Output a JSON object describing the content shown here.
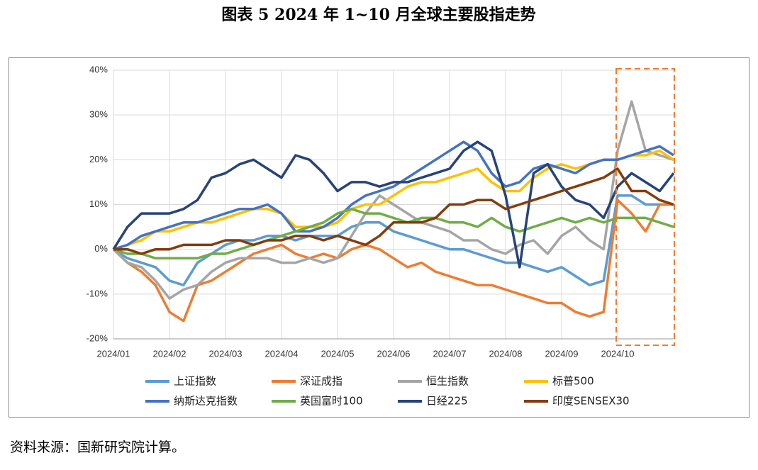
{
  "chart_data": {
    "type": "line",
    "title": "图表 5 2024 年 1~10 月全球主要股指走势",
    "source": "资料来源：国新研究院计算。",
    "x": [
      "2024/01",
      null,
      null,
      null,
      "2024/02",
      null,
      null,
      null,
      "2024/03",
      null,
      null,
      null,
      "2024/04",
      null,
      null,
      null,
      "2024/05",
      null,
      null,
      null,
      "2024/06",
      null,
      null,
      null,
      "2024/07",
      null,
      null,
      null,
      "2024/08",
      null,
      null,
      null,
      "2024/09",
      null,
      null,
      null,
      "2024/10",
      null,
      null,
      null,
      null
    ],
    "ylim": [
      -20,
      40
    ],
    "yticks": [
      {
        "value": -20,
        "label": "-20%"
      },
      {
        "value": -10,
        "label": "-10%"
      },
      {
        "value": 0,
        "label": "0%"
      },
      {
        "value": 10,
        "label": "10%"
      },
      {
        "value": 20,
        "label": "20%"
      },
      {
        "value": 30,
        "label": "30%"
      },
      {
        "value": 40,
        "label": "40%"
      }
    ],
    "grid": true,
    "legend": "bottom",
    "series": [
      {
        "name": "上证指数",
        "color": "#5b9bd5",
        "values": [
          0,
          -2,
          -3,
          -4,
          -7,
          -8,
          -3,
          -1,
          1,
          2,
          2,
          3,
          3,
          2,
          3,
          3,
          3,
          5,
          6,
          6,
          4,
          3,
          2,
          1,
          0,
          0,
          -1,
          -2,
          -3,
          -3,
          -4,
          -5,
          -4,
          -6,
          -8,
          -7,
          12,
          12,
          10,
          10,
          10
        ]
      },
      {
        "name": "深证成指",
        "color": "#ed7d31",
        "values": [
          0,
          -3,
          -5,
          -8,
          -14,
          -16,
          -8,
          -7,
          -5,
          -3,
          -1,
          0,
          1,
          -1,
          -2,
          -1,
          -2,
          0,
          1,
          0,
          -2,
          -4,
          -3,
          -5,
          -6,
          -7,
          -8,
          -8,
          -9,
          -10,
          -11,
          -12,
          -12,
          -14,
          -15,
          -14,
          11,
          8,
          4,
          10,
          10
        ]
      },
      {
        "name": "恒生指数",
        "color": "#a5a5a5",
        "values": [
          0,
          -3,
          -4,
          -7,
          -11,
          -9,
          -8,
          -5,
          -3,
          -2,
          -2,
          -2,
          -3,
          -3,
          -2,
          -3,
          -2,
          3,
          8,
          12,
          10,
          8,
          6,
          5,
          4,
          2,
          2,
          0,
          -1,
          1,
          2,
          -1,
          3,
          5,
          2,
          0,
          22,
          33,
          22,
          21,
          20
        ]
      },
      {
        "name": "标普500",
        "color": "#ffc000",
        "values": [
          0,
          1,
          2,
          4,
          4,
          5,
          6,
          6,
          7,
          8,
          9,
          9,
          8,
          5,
          5,
          5,
          6,
          9,
          10,
          10,
          12,
          14,
          15,
          15,
          16,
          17,
          18,
          15,
          13,
          13,
          16,
          18,
          19,
          18,
          19,
          20,
          20,
          21,
          21,
          22,
          20
        ]
      },
      {
        "name": "纳斯达克指数",
        "color": "#4472c4",
        "values": [
          0,
          1,
          3,
          4,
          5,
          6,
          6,
          7,
          8,
          9,
          9,
          10,
          8,
          4,
          4,
          5,
          7,
          10,
          12,
          13,
          14,
          16,
          18,
          20,
          22,
          24,
          22,
          17,
          14,
          15,
          18,
          19,
          18,
          17,
          19,
          20,
          20,
          21,
          22,
          23,
          21
        ]
      },
      {
        "name": "英国富时100",
        "color": "#70ad47",
        "values": [
          0,
          -1,
          -1,
          -2,
          -2,
          -2,
          -2,
          -1,
          -1,
          0,
          1,
          2,
          3,
          4,
          5,
          6,
          8,
          9,
          8,
          8,
          7,
          6,
          7,
          7,
          6,
          6,
          5,
          7,
          5,
          4,
          5,
          6,
          7,
          6,
          7,
          6,
          7,
          7,
          7,
          6,
          5
        ]
      },
      {
        "name": "日经225",
        "color": "#264478",
        "values": [
          0,
          5,
          8,
          8,
          8,
          9,
          11,
          16,
          17,
          19,
          20,
          18,
          16,
          21,
          20,
          17,
          13,
          15,
          15,
          14,
          15,
          15,
          16,
          17,
          18,
          22,
          24,
          22,
          12,
          -4,
          17,
          19,
          14,
          11,
          10,
          7,
          14,
          17,
          15,
          13,
          17
        ]
      },
      {
        "name": "印度SENSEX30",
        "color": "#843c0c",
        "values": [
          0,
          0,
          -1,
          0,
          0,
          1,
          1,
          1,
          2,
          2,
          1,
          2,
          2,
          3,
          3,
          2,
          3,
          2,
          1,
          3,
          6,
          6,
          6,
          7,
          10,
          10,
          11,
          11,
          9,
          10,
          11,
          12,
          13,
          14,
          15,
          16,
          18,
          13,
          13,
          11,
          10
        ]
      }
    ]
  }
}
